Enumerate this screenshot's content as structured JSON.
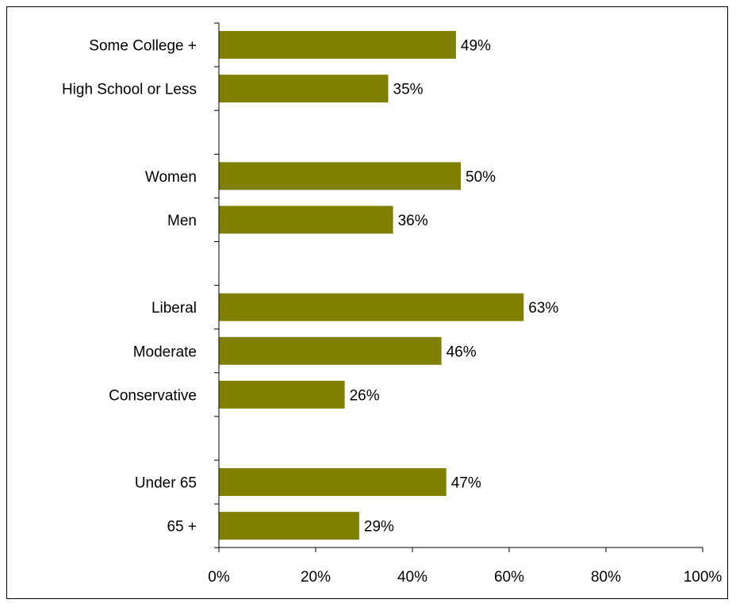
{
  "chart_data": {
    "type": "bar",
    "orientation": "horizontal",
    "bar_color": "#808000",
    "xlim": [
      0,
      100
    ],
    "x_ticks": [
      0,
      20,
      40,
      60,
      80,
      100
    ],
    "x_tick_labels": [
      "0%",
      "20%",
      "40%",
      "60%",
      "80%",
      "100%"
    ],
    "grid": false,
    "legend": "none",
    "title": "",
    "xlabel": "",
    "ylabel": "",
    "groups": [
      {
        "categories": [
          "Some College +",
          "High School or Less"
        ],
        "values": [
          49,
          35
        ],
        "labels": [
          "49%",
          "35%"
        ]
      },
      {
        "categories": [
          "Women",
          "Men"
        ],
        "values": [
          50,
          36
        ],
        "labels": [
          "50%",
          "36%"
        ]
      },
      {
        "categories": [
          "Liberal",
          "Moderate",
          "Conservative"
        ],
        "values": [
          63,
          46,
          26
        ],
        "labels": [
          "63%",
          "46%",
          "26%"
        ]
      },
      {
        "categories": [
          "Under 65",
          "65 +"
        ],
        "values": [
          47,
          29
        ],
        "labels": [
          "47%",
          "29%"
        ]
      }
    ]
  }
}
